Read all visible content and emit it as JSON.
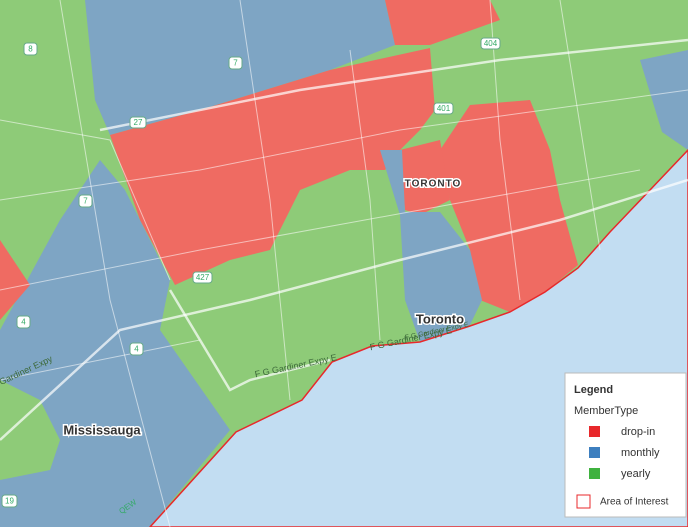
{
  "map": {
    "places": [
      "TORONTO",
      "Toronto",
      "Mississauga"
    ],
    "shields": [
      "8",
      "7",
      "27",
      "404",
      "401",
      "7",
      "427",
      "4",
      "4",
      "19",
      "QEW"
    ],
    "roads": [
      "F G Gardiner Expy E",
      "F G Gardiner Expy E",
      "F G Gardiner Expy E",
      "Gardiner Expy"
    ]
  },
  "legend": {
    "title": "Legend",
    "field": "MemberType",
    "items": [
      {
        "label": "drop-in",
        "color": "#e8282b"
      },
      {
        "label": "monthly",
        "color": "#3d7fbf"
      },
      {
        "label": "yearly",
        "color": "#3fb23f"
      }
    ],
    "area_of_interest": "Area of Interest"
  }
}
